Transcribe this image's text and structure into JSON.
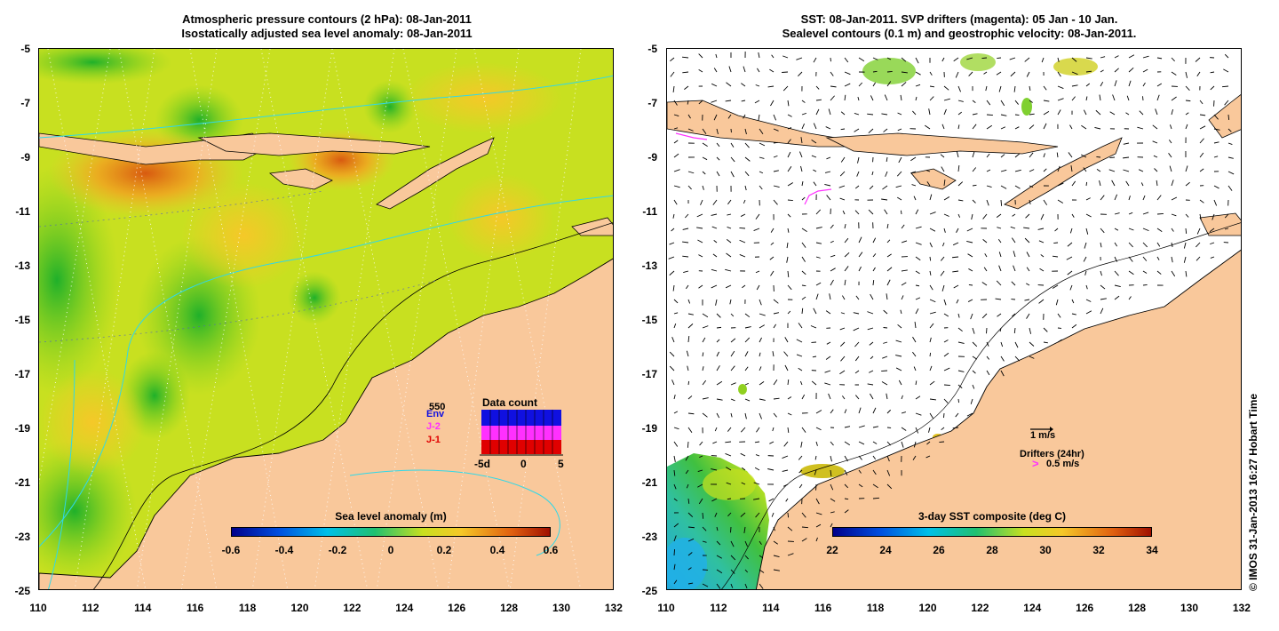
{
  "left_panel": {
    "title_line1": "Atmospheric pressure contours (2 hPa): 08-Jan-2011",
    "title_line2": "Isostatically adjusted sea level anomaly: 08-Jan-2011",
    "colorbar_title": "Sea level anomaly (m)",
    "colorbar_ticks": [
      "-0.6",
      "-0.4",
      "-0.2",
      "0",
      "0.2",
      "0.4",
      "0.6"
    ],
    "inset": {
      "title": "Data count",
      "max_label": "550",
      "series": [
        "Env",
        "J-2",
        "J-1"
      ],
      "series_colors": {
        "Env": "#1010e0",
        "J-2": "#ff30ff",
        "J-1": "#e00000"
      },
      "x_ticks": [
        "-5d",
        "0",
        "5"
      ]
    }
  },
  "right_panel": {
    "title_line1": "SST: 08-Jan-2011. SVP drifters (magenta): 05 Jan - 10 Jan.",
    "title_line2": "Sealevel contours (0.1 m) and geostrophic velocity: 08-Jan-2011.",
    "colorbar_title": "3-day SST composite (deg C)",
    "colorbar_ticks": [
      "22",
      "24",
      "26",
      "28",
      "30",
      "32",
      "34"
    ],
    "velocity_scale_label": "1 m/s",
    "drifters_label": "Drifters (24hr)",
    "drifters_scale_label": "0.5 m/s",
    "drifter_symbol": ">"
  },
  "axes": {
    "y_ticks": [
      "-5",
      "-7",
      "-9",
      "-11",
      "-13",
      "-15",
      "-17",
      "-19",
      "-21",
      "-23",
      "-25"
    ],
    "x_ticks": [
      "110",
      "112",
      "114",
      "116",
      "118",
      "120",
      "122",
      "124",
      "126",
      "128",
      "130",
      "132"
    ]
  },
  "copyright": "© IMOS 31-Jan-2013 16:27 Hobart Time",
  "colors": {
    "land": "#f9c89b",
    "slope_cb_low": "#00008b",
    "slope_cb_high": "#a01000",
    "drifter": "#ff30ff",
    "coast": "#000000"
  }
}
